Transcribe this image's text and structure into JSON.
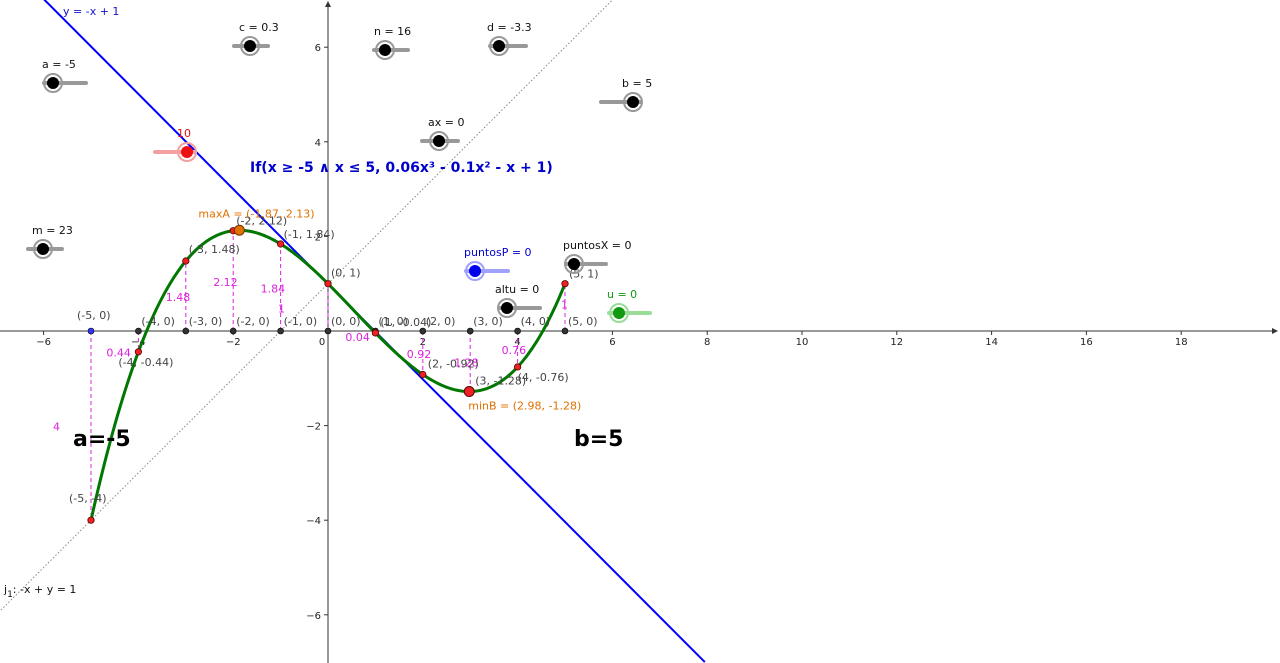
{
  "window": {
    "background": "#ffffff"
  },
  "axes": {
    "x_ticks": [
      "−6",
      "−4",
      "−2",
      "0",
      "2",
      "4",
      "6",
      "8",
      "10",
      "12",
      "14",
      "16",
      "18"
    ],
    "y_ticks": [
      "6",
      "4",
      "2",
      "−2",
      "−4",
      "−6"
    ],
    "x_range": [
      -6.9,
      20
    ],
    "y_range": [
      -7,
      7
    ]
  },
  "sliders": [
    {
      "id": "c",
      "label": "c = 0.3",
      "value": 0.3,
      "color": "#555555"
    },
    {
      "id": "n",
      "label": "n = 16",
      "value": 16,
      "color": "#555555"
    },
    {
      "id": "d",
      "label": "d = -3.3",
      "value": -3.3,
      "color": "#555555"
    },
    {
      "id": "a",
      "label": "a = -5",
      "value": -5,
      "color": "#555555"
    },
    {
      "id": "b",
      "label": "b = 5",
      "value": 5,
      "color": "#555555"
    },
    {
      "id": "ax",
      "label": "ax = 0",
      "value": 0,
      "color": "#555555"
    },
    {
      "id": "red",
      "label": "10",
      "value": 10,
      "color": "#e05050"
    },
    {
      "id": "m",
      "label": "m = 23",
      "value": 23,
      "color": "#555555"
    },
    {
      "id": "puntosP",
      "label": "puntosP = 0",
      "value": 0,
      "color": "#0000ff"
    },
    {
      "id": "puntosX",
      "label": "puntosX = 0",
      "value": 0,
      "color": "#555555"
    },
    {
      "id": "altu",
      "label": "altu = 0",
      "value": 0,
      "color": "#555555"
    },
    {
      "id": "u",
      "label": "u = 0",
      "value": 0,
      "color": "#119911"
    }
  ],
  "function": {
    "label": "If(x ≥ -5 ∧ x ≤ 5, 0.06x³ - 0.1x² - x + 1)",
    "color": "#007700",
    "label_color": "#0000cc",
    "a": -5,
    "b": 5
  },
  "tangent_line": {
    "label": "y = -x + 1",
    "color": "#0000ff"
  },
  "implicit_line": {
    "label_main": "j",
    "label_sub": "1",
    "label_rest": ": -x + y = 1",
    "color": "#888888"
  },
  "max_point": {
    "label": "maxA = (-1.87, 2.13)",
    "x": -1.87,
    "y": 2.13,
    "color": "#e07000"
  },
  "min_point": {
    "label": "minB = (2.98, -1.28)",
    "x": 2.98,
    "y": -1.28,
    "color": "#e07000"
  },
  "curve_points": [
    {
      "x": -5,
      "y": -4,
      "label": "(-5, -4)"
    },
    {
      "x": -4,
      "y": -0.44,
      "label": "(-4, -0.44)"
    },
    {
      "x": -3,
      "y": 1.48,
      "label": "(-3, 1.48)"
    },
    {
      "x": -2,
      "y": 2.12,
      "label": "(-2, 2.12)"
    },
    {
      "x": -1,
      "y": 1.84,
      "label": "(-1, 1.84)"
    },
    {
      "x": 0,
      "y": 1,
      "label": "(0, 1)"
    },
    {
      "x": 1,
      "y": -0.04,
      "label": "(1, -0.04)"
    },
    {
      "x": 2,
      "y": -0.92,
      "label": "(2, -0.92)"
    },
    {
      "x": 3,
      "y": -1.28,
      "label": "(3, -1.28)"
    },
    {
      "x": 4,
      "y": -0.76,
      "label": "(4, -0.76)"
    },
    {
      "x": 5,
      "y": 1,
      "label": "(5, 1)"
    }
  ],
  "axis_points": [
    {
      "x": -5,
      "label": "(-5, 0)",
      "color": "#3333ff"
    },
    {
      "x": -4,
      "label": "(-4, 0)",
      "color": "#333333"
    },
    {
      "x": -3,
      "label": "(-3, 0)",
      "color": "#333333"
    },
    {
      "x": -2,
      "label": "(-2, 0)",
      "color": "#333333"
    },
    {
      "x": -1,
      "label": "(-1, 0)",
      "color": "#333333"
    },
    {
      "x": 0,
      "label": "(0, 0)",
      "color": "#333333"
    },
    {
      "x": 1,
      "label": "(1, 0)",
      "color": "#333333"
    },
    {
      "x": 2,
      "label": "(2, 0)",
      "color": "#333333"
    },
    {
      "x": 3,
      "label": "(3, 0)",
      "color": "#333333"
    },
    {
      "x": 4,
      "label": "(4, 0)",
      "color": "#333333"
    },
    {
      "x": 5,
      "label": "(5, 0)",
      "color": "#333333"
    }
  ],
  "height_labels": [
    {
      "x": -5,
      "text": "4"
    },
    {
      "x": -4,
      "text": "0.44"
    },
    {
      "x": -3,
      "text": "1.48"
    },
    {
      "x": -2,
      "text": "2.12"
    },
    {
      "x": -1,
      "text": "1.84"
    },
    {
      "x": 0,
      "text": "1"
    },
    {
      "x": 1,
      "text": "0.04"
    },
    {
      "x": 2,
      "text": "0.92"
    },
    {
      "x": 3,
      "text": "1.28"
    },
    {
      "x": 4,
      "text": "0.76"
    },
    {
      "x": 5,
      "text": "1"
    }
  ],
  "height_color": "#dd22dd",
  "big_labels": {
    "a_text": "a=-5",
    "b_text": "b=5"
  }
}
